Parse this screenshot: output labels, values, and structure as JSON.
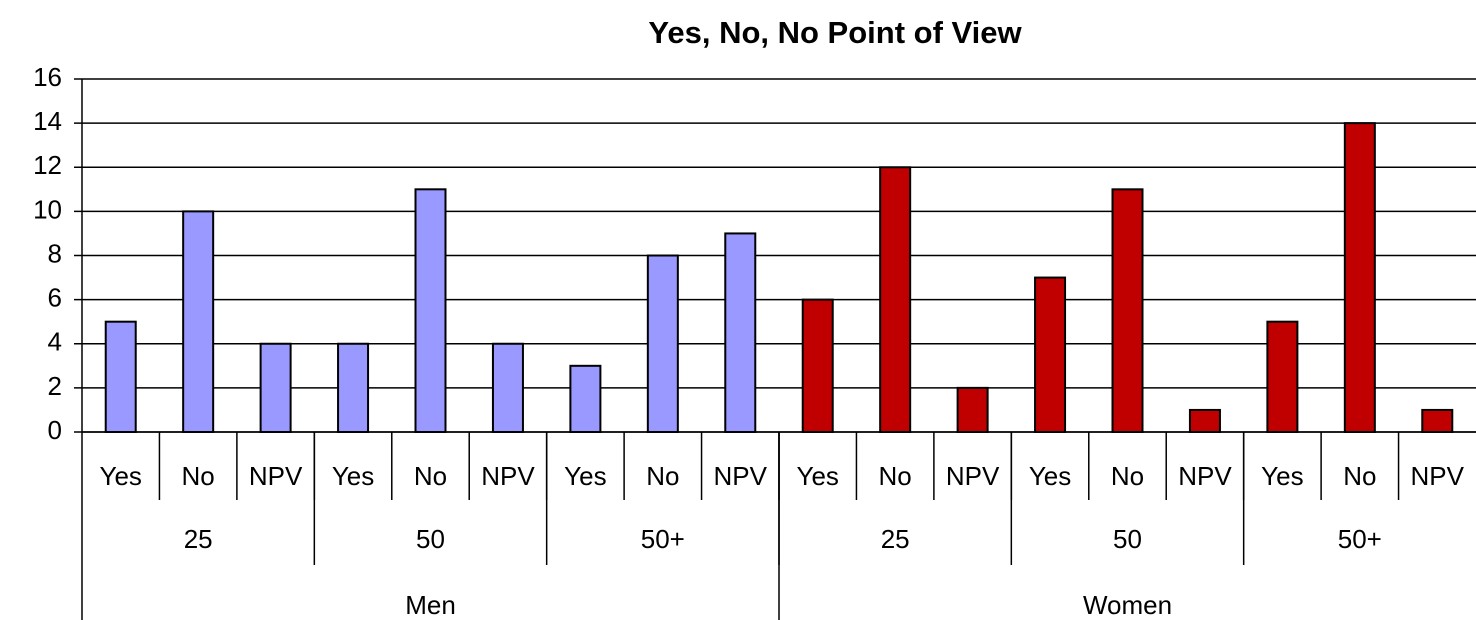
{
  "chart_data": {
    "type": "bar",
    "title": "Yes, No, No Point of View",
    "groups": [
      {
        "name": "Men",
        "color": "#9999ff",
        "subgroups": [
          {
            "name": "25",
            "categories": [
              "Yes",
              "No",
              "NPV"
            ],
            "values": [
              5,
              10,
              4
            ]
          },
          {
            "name": "50",
            "categories": [
              "Yes",
              "No",
              "NPV"
            ],
            "values": [
              4,
              11,
              4
            ]
          },
          {
            "name": "50+",
            "categories": [
              "Yes",
              "No",
              "NPV"
            ],
            "values": [
              3,
              8,
              9
            ]
          }
        ]
      },
      {
        "name": "Women",
        "color": "#c00000",
        "subgroups": [
          {
            "name": "25",
            "categories": [
              "Yes",
              "No",
              "NPV"
            ],
            "values": [
              6,
              12,
              2
            ]
          },
          {
            "name": "50",
            "categories": [
              "Yes",
              "No",
              "NPV"
            ],
            "values": [
              7,
              11,
              1
            ]
          },
          {
            "name": "50+",
            "categories": [
              "Yes",
              "No",
              "NPV"
            ],
            "values": [
              5,
              14,
              1
            ]
          }
        ]
      }
    ],
    "ylim": [
      0,
      16
    ],
    "yticks": [
      0,
      2,
      4,
      6,
      8,
      10,
      12,
      14,
      16
    ],
    "grid": true
  }
}
